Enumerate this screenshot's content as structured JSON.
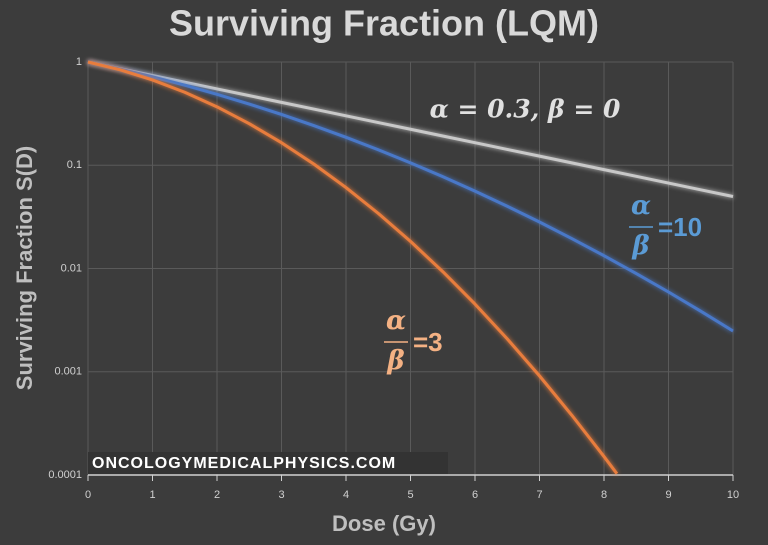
{
  "chart_data": {
    "type": "line",
    "title": "Surviving Fraction (LQM)",
    "x_label": "Dose (Gy)",
    "y_label": "Surviving Fraction S(D)",
    "log_y": true,
    "grid": true,
    "xlim": [
      0,
      10
    ],
    "xticks": [
      0,
      1,
      2,
      3,
      4,
      5,
      6,
      7,
      8,
      9,
      10
    ],
    "ylim": [
      0.0001,
      1
    ],
    "yticks": [
      1,
      0.1,
      0.01,
      0.001,
      0.0001
    ],
    "series": [
      {
        "name": "α = 0.3, β = 0",
        "color": "#c8c8c8",
        "x": [
          0,
          0.5,
          1,
          1.5,
          2,
          2.5,
          3,
          3.5,
          4,
          4.5,
          5,
          5.5,
          6,
          6.5,
          7,
          7.5,
          8,
          8.5,
          9,
          9.5,
          10
        ],
        "values": [
          1,
          0.8607,
          0.7408,
          0.6376,
          0.5488,
          0.4724,
          0.4066,
          0.3499,
          0.3012,
          0.2592,
          0.2231,
          0.192,
          0.1653,
          0.1423,
          0.1225,
          0.1054,
          0.0907,
          0.0781,
          0.0672,
          0.0578,
          0.0498
        ]
      },
      {
        "name": "=10",
        "numerator": "α",
        "denominator": "β",
        "color": "#4a78c8",
        "label_color": "#5b9bd5",
        "x": [
          0,
          0.5,
          1,
          1.5,
          2,
          2.5,
          3,
          3.5,
          4,
          4.5,
          5,
          5.5,
          6,
          6.5,
          7,
          7.5,
          8,
          8.5,
          9,
          9.5,
          10
        ],
        "values": [
          1,
          0.8543,
          0.7189,
          0.596,
          0.4868,
          0.3916,
          0.3104,
          0.2423,
          0.1864,
          0.1412,
          0.1054,
          0.0775,
          0.0561,
          0.0401,
          0.0282,
          0.0195,
          0.0133,
          0.00894,
          0.00592,
          0.00386,
          0.00248
        ]
      },
      {
        "name": "=3",
        "numerator": "α",
        "denominator": "β",
        "color": "#e87d3e",
        "label_color": "#f4b183",
        "x": [
          0,
          0.5,
          1,
          1.5,
          2,
          2.5,
          3,
          3.5,
          4,
          4.5,
          5,
          5.5,
          6,
          6.5,
          7,
          7.5,
          8,
          8.2
        ],
        "values": [
          1,
          0.8395,
          0.6703,
          0.5092,
          0.3679,
          0.2528,
          0.1653,
          0.1028,
          0.0608,
          0.0342,
          0.0183,
          0.00933,
          0.00452,
          0.00208,
          0.000912,
          0.00038,
          0.000151,
          0.000103
        ]
      }
    ],
    "watermark": "ONCOLOGYMEDICALPHYSICS.COM"
  }
}
